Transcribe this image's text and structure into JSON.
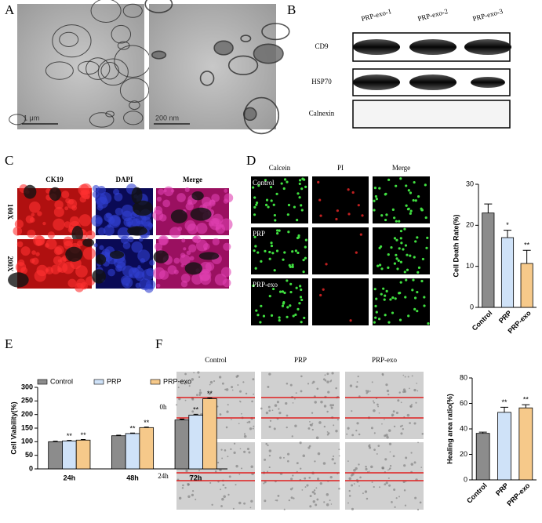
{
  "panels": {
    "A": {
      "letter": "A",
      "scale_left": "1 μm",
      "scale_right": "200 nm"
    },
    "B": {
      "letter": "B",
      "columns": [
        "PRP-exo-1",
        "PRP-exo-2",
        "PRP-exo-3"
      ],
      "rows": [
        "CD9",
        "HSP70",
        "Calnexin"
      ]
    },
    "C": {
      "letter": "C",
      "columns": [
        "CK19",
        "DAPI",
        "Merge"
      ],
      "rows": [
        "100X",
        "200X"
      ]
    },
    "D": {
      "letter": "D",
      "columns": [
        "Calcein",
        "PI",
        "Merge"
      ],
      "rows": [
        "Control",
        "PRP",
        "PRP-exo"
      ]
    },
    "E": {
      "letter": "E"
    },
    "F": {
      "letter": "F",
      "columns": [
        "Control",
        "PRP",
        "PRP-exo"
      ],
      "rows": [
        "0h",
        "24h"
      ]
    }
  },
  "chart_data": [
    {
      "type": "bar",
      "y_label": "Cell Death Rate(%)",
      "categories": [
        "Control",
        "PRP",
        "PRP-exo"
      ],
      "values": [
        23,
        17,
        10.7
      ],
      "errors": [
        2.2,
        1.8,
        3.2
      ],
      "annotations": [
        null,
        "*",
        "**"
      ],
      "colors": [
        "#8c8c8c",
        "#cfe2f8",
        "#f6c98a"
      ],
      "ylim": [
        0,
        30
      ],
      "yticks": [
        0,
        10,
        20,
        30
      ]
    },
    {
      "type": "grouped_bar",
      "y_label": "Cell Viability(%)",
      "categories": [
        "24h",
        "48h",
        "72h"
      ],
      "series": [
        {
          "name": "Control",
          "color": "#8c8c8c",
          "values": [
            100,
            122,
            180
          ],
          "errors": [
            2,
            2,
            3
          ]
        },
        {
          "name": "PRP",
          "color": "#cfe2f8",
          "values": [
            103,
            130,
            198
          ],
          "errors": [
            2,
            2,
            3
          ],
          "annotations": [
            "**",
            "**",
            "**"
          ]
        },
        {
          "name": "PRP-exo",
          "color": "#f6c98a",
          "values": [
            106,
            152,
            258
          ],
          "errors": [
            2,
            2,
            3
          ],
          "annotations": [
            "**",
            "**",
            "**"
          ]
        }
      ],
      "ylim": [
        0,
        300
      ],
      "yticks": [
        0,
        50,
        100,
        150,
        200,
        250,
        300
      ],
      "legend": "top"
    },
    {
      "type": "bar",
      "y_label": "Healing area ratio(%)",
      "categories": [
        "Control",
        "PRP",
        "PRP-exo"
      ],
      "values": [
        36.5,
        53,
        56.5
      ],
      "errors": [
        1,
        4,
        2.5
      ],
      "annotations": [
        null,
        "**",
        "**"
      ],
      "colors": [
        "#8c8c8c",
        "#cfe2f8",
        "#f6c98a"
      ],
      "ylim": [
        0,
        80
      ],
      "yticks": [
        0,
        20,
        40,
        60,
        80
      ]
    }
  ]
}
